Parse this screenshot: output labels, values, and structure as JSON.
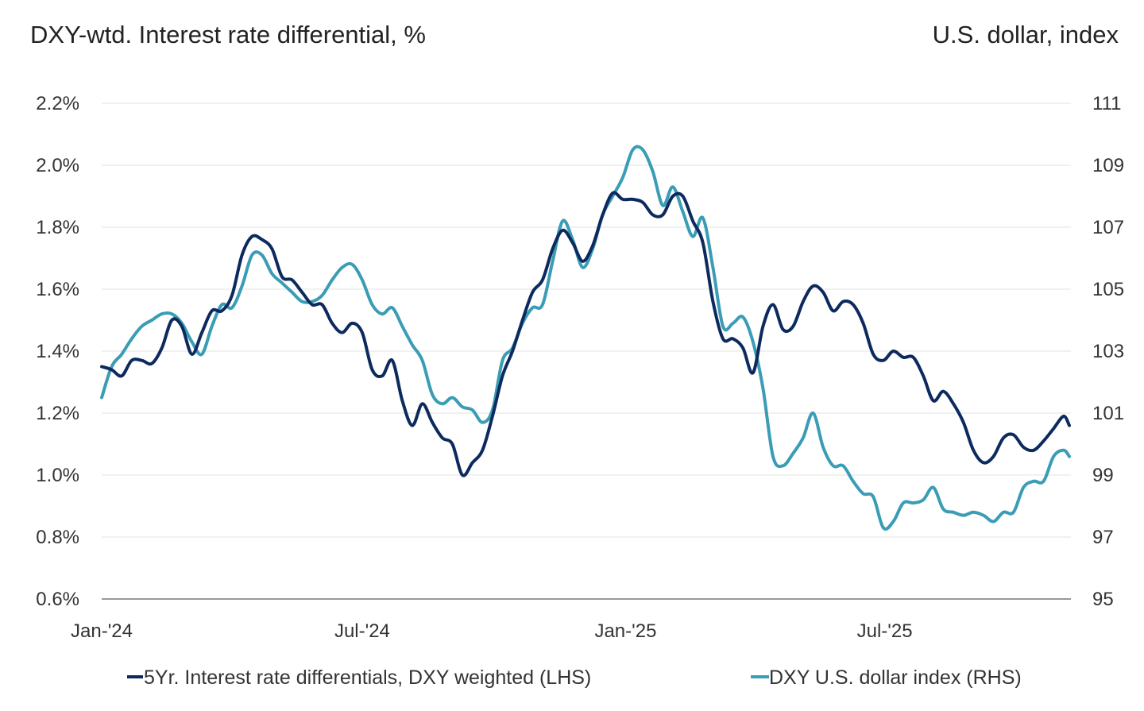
{
  "chart_data": {
    "type": "line",
    "title_left": "DXY-wtd. Interest rate differential, %",
    "title_right": "U.S. dollar, index",
    "xlim": [
      "2024-01-01",
      "2025-11-07"
    ],
    "x_ticks": [
      {
        "date": "2024-01-01",
        "label": "Jan-'24"
      },
      {
        "date": "2024-07-01",
        "label": "Jul-'24"
      },
      {
        "date": "2025-01-01",
        "label": "Jan-'25"
      },
      {
        "date": "2025-07-01",
        "label": "Jul-'25"
      }
    ],
    "y_left": {
      "lim": [
        0.6,
        2.2
      ],
      "ticks": [
        0.6,
        0.8,
        1.0,
        1.2,
        1.4,
        1.6,
        1.8,
        2.0,
        2.2
      ],
      "tick_labels": [
        "0.6%",
        "0.8%",
        "1.0%",
        "1.2%",
        "1.4%",
        "1.6%",
        "1.8%",
        "2.0%",
        "2.2%"
      ]
    },
    "y_right": {
      "lim": [
        95,
        111
      ],
      "ticks": [
        95,
        97,
        99,
        101,
        103,
        105,
        107,
        109,
        111
      ],
      "tick_labels": [
        "95",
        "97",
        "99",
        "101",
        "103",
        "105",
        "107",
        "109",
        "111"
      ]
    },
    "grid": true,
    "legend_position": "bottom",
    "dates": [
      "2024-01-01",
      "2024-01-08",
      "2024-01-15",
      "2024-01-22",
      "2024-01-29",
      "2024-02-05",
      "2024-02-12",
      "2024-02-19",
      "2024-02-26",
      "2024-03-04",
      "2024-03-11",
      "2024-03-18",
      "2024-03-25",
      "2024-04-01",
      "2024-04-08",
      "2024-04-15",
      "2024-04-22",
      "2024-04-29",
      "2024-05-06",
      "2024-05-13",
      "2024-05-20",
      "2024-05-27",
      "2024-06-03",
      "2024-06-10",
      "2024-06-17",
      "2024-06-24",
      "2024-07-01",
      "2024-07-08",
      "2024-07-15",
      "2024-07-22",
      "2024-07-29",
      "2024-08-05",
      "2024-08-12",
      "2024-08-19",
      "2024-08-26",
      "2024-09-02",
      "2024-09-09",
      "2024-09-16",
      "2024-09-23",
      "2024-09-30",
      "2024-10-07",
      "2024-10-14",
      "2024-10-21",
      "2024-10-28",
      "2024-11-04",
      "2024-11-11",
      "2024-11-18",
      "2024-11-25",
      "2024-12-02",
      "2024-12-09",
      "2024-12-16",
      "2024-12-23",
      "2024-12-30",
      "2025-01-06",
      "2025-01-13",
      "2025-01-20",
      "2025-01-27",
      "2025-02-03",
      "2025-02-10",
      "2025-02-17",
      "2025-02-24",
      "2025-03-03",
      "2025-03-10",
      "2025-03-17",
      "2025-03-24",
      "2025-03-31",
      "2025-04-07",
      "2025-04-14",
      "2025-04-21",
      "2025-04-28",
      "2025-05-05",
      "2025-05-12",
      "2025-05-19",
      "2025-05-26",
      "2025-06-02",
      "2025-06-09",
      "2025-06-16",
      "2025-06-23",
      "2025-06-30",
      "2025-07-07",
      "2025-07-14",
      "2025-07-21",
      "2025-07-28",
      "2025-08-04",
      "2025-08-11",
      "2025-08-18",
      "2025-08-25",
      "2025-09-01",
      "2025-09-08",
      "2025-09-15",
      "2025-09-22",
      "2025-09-29",
      "2025-10-06",
      "2025-10-13",
      "2025-10-20",
      "2025-10-27",
      "2025-11-03",
      "2025-11-07"
    ],
    "series": [
      {
        "name": "5Yr. Interest rate differentials, DXY weighted (LHS)",
        "axis": "left",
        "color": "#0d2a5e",
        "values": [
          1.35,
          1.34,
          1.32,
          1.37,
          1.37,
          1.36,
          1.41,
          1.5,
          1.48,
          1.39,
          1.46,
          1.53,
          1.53,
          1.58,
          1.71,
          1.77,
          1.76,
          1.73,
          1.64,
          1.63,
          1.59,
          1.55,
          1.55,
          1.49,
          1.46,
          1.49,
          1.46,
          1.34,
          1.32,
          1.37,
          1.24,
          1.16,
          1.23,
          1.17,
          1.12,
          1.1,
          1.0,
          1.04,
          1.08,
          1.19,
          1.32,
          1.4,
          1.5,
          1.59,
          1.63,
          1.73,
          1.79,
          1.75,
          1.69,
          1.74,
          1.84,
          1.91,
          1.89,
          1.89,
          1.88,
          1.84,
          1.84,
          1.9,
          1.9,
          1.82,
          1.75,
          1.56,
          1.44,
          1.44,
          1.41,
          1.33,
          1.48,
          1.55,
          1.47,
          1.48,
          1.56,
          1.61,
          1.59,
          1.53,
          1.56,
          1.55,
          1.49,
          1.39,
          1.37,
          1.4,
          1.38,
          1.38,
          1.32,
          1.24,
          1.27,
          1.23,
          1.17,
          1.08,
          1.04,
          1.06,
          1.12,
          1.13,
          1.09,
          1.08,
          1.11,
          1.15,
          1.19,
          1.16
        ]
      },
      {
        "name": "DXY U.S. dollar index (RHS)",
        "axis": "right",
        "color": "#3a9db5",
        "values": [
          101.5,
          102.5,
          102.9,
          103.4,
          103.8,
          104.0,
          104.2,
          104.2,
          103.9,
          103.3,
          102.9,
          103.8,
          104.5,
          104.4,
          105.1,
          106.1,
          106.1,
          105.5,
          105.2,
          104.9,
          104.6,
          104.6,
          104.8,
          105.3,
          105.7,
          105.8,
          105.3,
          104.5,
          104.2,
          104.4,
          103.8,
          103.2,
          102.7,
          101.6,
          101.3,
          101.5,
          101.2,
          101.1,
          100.7,
          101.1,
          102.7,
          103.1,
          103.9,
          104.4,
          104.5,
          105.9,
          107.2,
          106.6,
          105.7,
          106.3,
          107.4,
          108.0,
          108.6,
          109.5,
          109.5,
          108.8,
          107.7,
          108.3,
          107.5,
          106.7,
          107.3,
          105.7,
          103.8,
          103.9,
          104.1,
          103.3,
          101.8,
          99.6,
          99.3,
          99.7,
          100.2,
          101.0,
          99.9,
          99.3,
          99.3,
          98.8,
          98.4,
          98.3,
          97.3,
          97.5,
          98.1,
          98.1,
          98.2,
          98.6,
          97.9,
          97.8,
          97.7,
          97.8,
          97.7,
          97.5,
          97.8,
          97.8,
          98.6,
          98.8,
          98.8,
          99.6,
          99.8,
          99.6
        ]
      }
    ]
  }
}
